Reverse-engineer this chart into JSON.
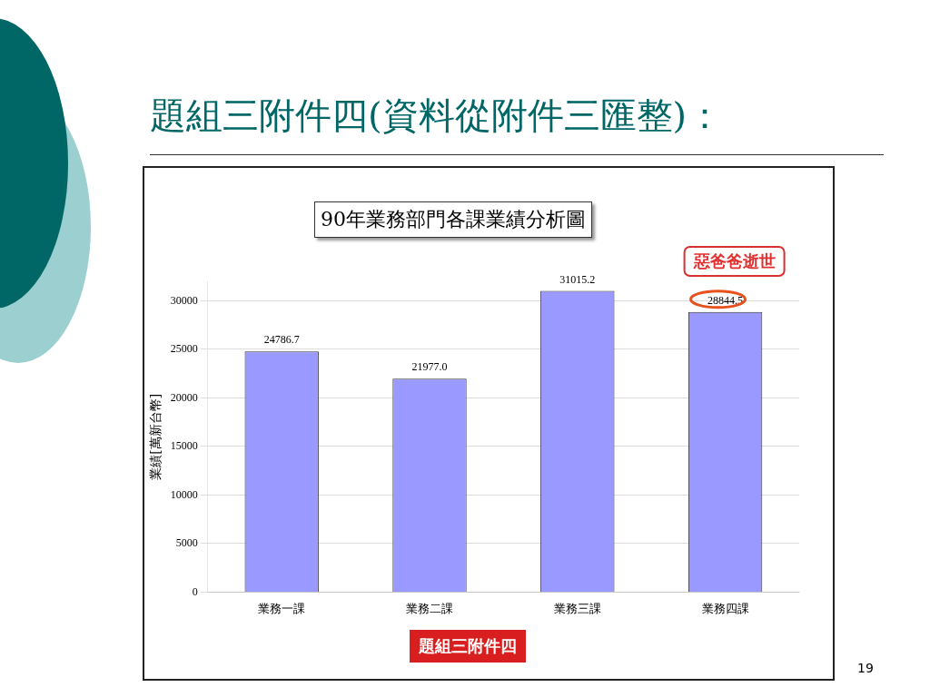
{
  "chart_data": {
    "type": "bar",
    "title": "題組三附件四(資料從附件三匯整)：",
    "subtitle": "90年業務部門各課業績分析圖",
    "ylabel": "業績[萬新台幣]",
    "categories": [
      "業務一課",
      "業務二課",
      "業務三課",
      "業務四課"
    ],
    "values": [
      24786.7,
      21977.0,
      31015.2,
      28844.5
    ],
    "value_labels": [
      "24786.7",
      "21977.0",
      "31015.2",
      "28844.5"
    ],
    "color": "#9999ff",
    "ylim": [
      0,
      32000
    ],
    "yticks": [
      0,
      5000,
      10000,
      15000,
      20000,
      25000,
      30000
    ],
    "grid": "y",
    "legend": false,
    "annotations": [
      {
        "text": "惡爸爸逝世",
        "x": "業務四課",
        "y": 28844.5
      },
      "題組三附件四",
      "19"
    ]
  }
}
